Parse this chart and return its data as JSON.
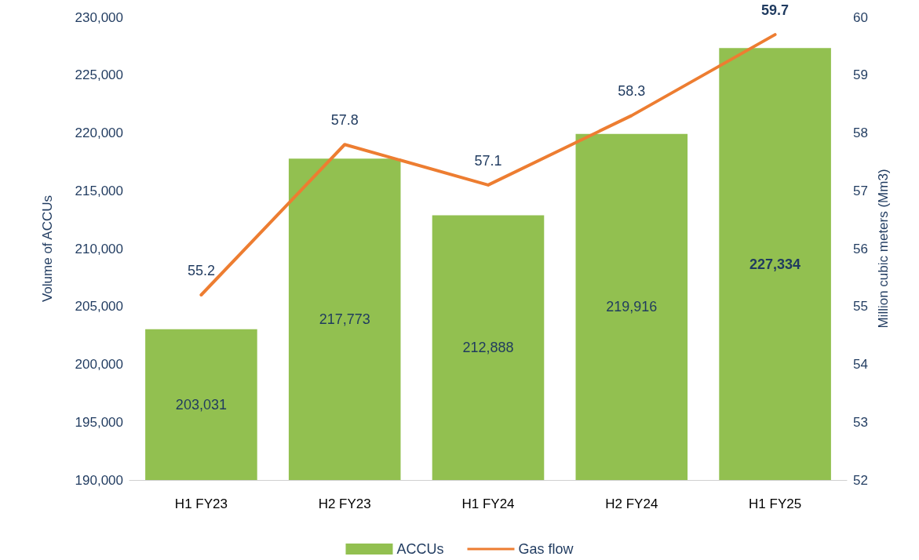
{
  "chart_data": {
    "type": "bar",
    "categories": [
      "H1 FY23",
      "H2 FY23",
      "H1 FY24",
      "H2 FY24",
      "H1 FY25"
    ],
    "ylabel": "Volume of ACCUs",
    "y2label": "Million cubic meters (Mm3)",
    "series": [
      {
        "name": "ACCUs",
        "type": "bar",
        "color": "#92c050",
        "values": [
          203031,
          217773,
          212888,
          219916,
          227334
        ],
        "value_labels": [
          "203,031",
          "217,773",
          "212,888",
          "219,916",
          "227,334"
        ]
      },
      {
        "name": "Gas flow",
        "type": "line",
        "axis": "y2",
        "color": "#ed7d31",
        "values": [
          55.2,
          57.8,
          57.1,
          58.3,
          59.7
        ]
      }
    ],
    "ylim": [
      190000,
      230000
    ],
    "yticks": [
      {
        "value": 190000,
        "label": "190,000"
      },
      {
        "value": 195000,
        "label": "195,000"
      },
      {
        "value": 200000,
        "label": "200,000"
      },
      {
        "value": 205000,
        "label": "205,000"
      },
      {
        "value": 210000,
        "label": "210,000"
      },
      {
        "value": 215000,
        "label": "215,000"
      },
      {
        "value": 220000,
        "label": "220,000"
      },
      {
        "value": 225000,
        "label": "225,000"
      },
      {
        "value": 230000,
        "label": "230,000"
      }
    ],
    "y2lim": [
      52,
      60
    ],
    "y2ticks": [
      52,
      53,
      54,
      55,
      56,
      57,
      58,
      59,
      60
    ],
    "data_labels": true,
    "grid": false,
    "legend": "bottom",
    "marker": "none",
    "line_style": "solid"
  }
}
